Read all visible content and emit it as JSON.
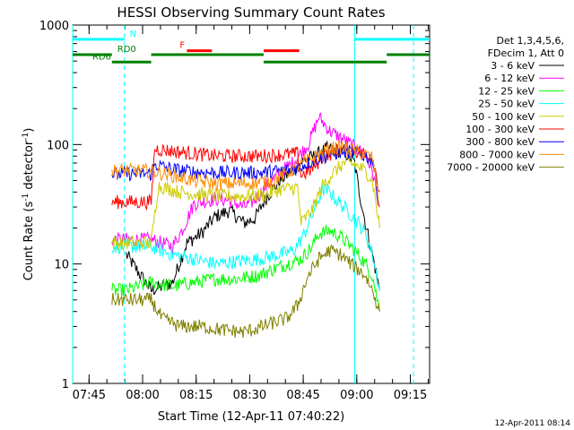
{
  "chart_data": {
    "type": "line",
    "title": "HESSI Observing Summary Count Rates",
    "xlabel": "Start Time (12-Apr-11 07:40:22)",
    "ylabel_main": "Count Rate (s",
    "ylabel_sup1": "-1",
    "ylabel_mid": " detector",
    "ylabel_sup2": "-1",
    "ylabel_end": ")",
    "footer_date": "12-Apr-2011 08:14",
    "xaxis_unit": "minutes since 07:40:22",
    "xlim": [
      0,
      100
    ],
    "ylim": [
      1,
      1000
    ],
    "yscale": "log",
    "xticks": [
      {
        "v": 4.6,
        "label": "07:45"
      },
      {
        "v": 19.6,
        "label": "08:00"
      },
      {
        "v": 34.6,
        "label": "08:15"
      },
      {
        "v": 49.6,
        "label": "08:30"
      },
      {
        "v": 64.6,
        "label": "08:45"
      },
      {
        "v": 79.6,
        "label": "09:00"
      },
      {
        "v": 94.6,
        "label": "09:15"
      }
    ],
    "yticks": [
      {
        "v": 1,
        "label": "1"
      },
      {
        "v": 10,
        "label": "10"
      },
      {
        "v": 100,
        "label": "100"
      },
      {
        "v": 1000,
        "label": "1000"
      }
    ],
    "legend_header": [
      "Det 1,3,4,5,6,",
      "FDecim 1, Att 0"
    ],
    "vlines": [
      {
        "x": 0.0,
        "style": "solid",
        "color": "#00ffff"
      },
      {
        "x": 14.5,
        "style": "dashed",
        "color": "#00ffff"
      },
      {
        "x": 79.0,
        "style": "solid",
        "color": "#00ffff"
      },
      {
        "x": 95.5,
        "style": "dashed",
        "color": "#00ffff"
      }
    ],
    "flag_bars": [
      {
        "label": "N",
        "color": "#00ffff",
        "y": 760,
        "segments": [
          [
            0,
            14.5
          ],
          [
            79,
            100
          ]
        ],
        "label_x": 16
      },
      {
        "label": "F",
        "color": "#ff0000",
        "y": 610,
        "segments": [
          [
            32,
            39
          ],
          [
            53.5,
            63.5
          ]
        ],
        "label_x": 30
      },
      {
        "label": "RD0",
        "color": "#008000",
        "y": 565,
        "segments": [
          [
            0,
            11
          ],
          [
            22,
            53.5
          ],
          [
            88,
            100
          ]
        ],
        "label_x": 12.5
      },
      {
        "label": "RD6",
        "color": "#008000",
        "y": 490,
        "segments": [
          [
            11,
            22
          ],
          [
            53.5,
            88
          ]
        ],
        "label_x": 5.5
      }
    ],
    "series": [
      {
        "name": "3 - 6 keV",
        "color": "#000000",
        "points": [
          [
            11,
            null
          ],
          [
            15,
            12
          ],
          [
            22,
            6
          ],
          [
            28,
            7
          ],
          [
            32,
            15
          ],
          [
            36,
            18
          ],
          [
            40,
            25
          ],
          [
            44,
            28
          ],
          [
            48,
            22
          ],
          [
            51,
            24
          ],
          [
            54,
            35
          ],
          [
            58,
            50
          ],
          [
            62,
            62
          ],
          [
            65,
            75
          ],
          [
            68,
            80
          ],
          [
            71,
            92
          ],
          [
            74,
            90
          ],
          [
            77,
            82
          ],
          [
            79,
            70
          ],
          [
            80,
            45
          ],
          [
            82,
            22
          ],
          [
            84,
            12
          ],
          [
            86,
            6
          ]
        ]
      },
      {
        "name": "6 - 12 keV",
        "color": "#ff00ff",
        "points": [
          [
            11,
            16
          ],
          [
            15,
            16
          ],
          [
            22,
            16
          ],
          [
            28,
            14
          ],
          [
            31,
            20
          ],
          [
            34,
            32
          ],
          [
            40,
            35
          ],
          [
            44,
            34
          ],
          [
            48,
            30
          ],
          [
            51,
            34
          ],
          [
            54,
            44
          ],
          [
            58,
            58
          ],
          [
            62,
            72
          ],
          [
            66,
            100
          ],
          [
            69,
            170
          ],
          [
            72,
            130
          ],
          [
            76,
            110
          ],
          [
            79,
            95
          ],
          [
            82,
            82
          ],
          [
            84,
            60
          ],
          [
            86,
            30
          ]
        ]
      },
      {
        "name": "12 - 25 keV",
        "color": "#00ff00",
        "points": [
          [
            11,
            6
          ],
          [
            15,
            6
          ],
          [
            22,
            7
          ],
          [
            28,
            6.5
          ],
          [
            34,
            7
          ],
          [
            40,
            7.5
          ],
          [
            46,
            7.5
          ],
          [
            52,
            8
          ],
          [
            56,
            9
          ],
          [
            60,
            10
          ],
          [
            64,
            11
          ],
          [
            67,
            14
          ],
          [
            69,
            18
          ],
          [
            72,
            19
          ],
          [
            75,
            17
          ],
          [
            78,
            14
          ],
          [
            80,
            12
          ],
          [
            82,
            10
          ],
          [
            84,
            8
          ],
          [
            86,
            4
          ]
        ]
      },
      {
        "name": "25 - 50 keV",
        "color": "#00ffff",
        "points": [
          [
            11,
            14
          ],
          [
            15,
            14
          ],
          [
            22,
            14
          ],
          [
            28,
            12
          ],
          [
            34,
            11
          ],
          [
            40,
            10
          ],
          [
            46,
            10.5
          ],
          [
            52,
            11
          ],
          [
            58,
            12
          ],
          [
            62,
            13
          ],
          [
            65,
            18
          ],
          [
            68,
            30
          ],
          [
            70,
            42
          ],
          [
            72,
            40
          ],
          [
            74,
            34
          ],
          [
            77,
            28
          ],
          [
            80,
            22
          ],
          [
            82,
            18
          ],
          [
            84,
            12
          ],
          [
            86,
            6
          ]
        ]
      },
      {
        "name": "50 - 100 keV",
        "color": "#cccc00",
        "points": [
          [
            11,
            15
          ],
          [
            15,
            15
          ],
          [
            22,
            15
          ],
          [
            24,
            45
          ],
          [
            30,
            40
          ],
          [
            36,
            38
          ],
          [
            42,
            37
          ],
          [
            48,
            37
          ],
          [
            54,
            38
          ],
          [
            58,
            42
          ],
          [
            63,
            44
          ],
          [
            64,
            22
          ],
          [
            67,
            28
          ],
          [
            70,
            45
          ],
          [
            73,
            58
          ],
          [
            76,
            70
          ],
          [
            79,
            68
          ],
          [
            82,
            60
          ],
          [
            84,
            50
          ],
          [
            86,
            20
          ]
        ]
      },
      {
        "name": "100 - 300 keV",
        "color": "#ff0000",
        "points": [
          [
            11,
            33
          ],
          [
            15,
            33
          ],
          [
            22,
            33
          ],
          [
            23,
            92
          ],
          [
            28,
            88
          ],
          [
            34,
            84
          ],
          [
            40,
            80
          ],
          [
            46,
            80
          ],
          [
            52,
            80
          ],
          [
            58,
            82
          ],
          [
            63,
            84
          ],
          [
            64,
            55
          ],
          [
            67,
            62
          ],
          [
            70,
            78
          ],
          [
            74,
            88
          ],
          [
            78,
            90
          ],
          [
            81,
            85
          ],
          [
            84,
            80
          ],
          [
            86,
            40
          ]
        ]
      },
      {
        "name": "300 - 800 keV",
        "color": "#0000ff",
        "points": [
          [
            11,
            56
          ],
          [
            15,
            57
          ],
          [
            22,
            57
          ],
          [
            23,
            68
          ],
          [
            28,
            62
          ],
          [
            34,
            59
          ],
          [
            40,
            58
          ],
          [
            46,
            58
          ],
          [
            52,
            58
          ],
          [
            58,
            60
          ],
          [
            62,
            62
          ],
          [
            65,
            68
          ],
          [
            68,
            75
          ],
          [
            72,
            82
          ],
          [
            76,
            88
          ],
          [
            79,
            86
          ],
          [
            82,
            80
          ],
          [
            84,
            75
          ],
          [
            86,
            30
          ]
        ]
      },
      {
        "name": "800 - 7000 keV",
        "color": "#ff8c00",
        "points": [
          [
            11,
            60
          ],
          [
            15,
            61
          ],
          [
            22,
            60
          ],
          [
            28,
            55
          ],
          [
            34,
            50
          ],
          [
            40,
            47
          ],
          [
            46,
            47
          ],
          [
            52,
            48
          ],
          [
            56,
            50
          ],
          [
            60,
            58
          ],
          [
            64,
            68
          ],
          [
            68,
            80
          ],
          [
            72,
            92
          ],
          [
            75,
            95
          ],
          [
            78,
            90
          ],
          [
            81,
            84
          ],
          [
            84,
            78
          ],
          [
            86,
            30
          ]
        ]
      },
      {
        "name": "7000 - 20000 keV",
        "color": "#808000",
        "points": [
          [
            11,
            5
          ],
          [
            15,
            5
          ],
          [
            22,
            5
          ],
          [
            25,
            3.5
          ],
          [
            30,
            3
          ],
          [
            36,
            3
          ],
          [
            42,
            2.8
          ],
          [
            48,
            2.7
          ],
          [
            52,
            2.9
          ],
          [
            56,
            3.2
          ],
          [
            60,
            3.5
          ],
          [
            63,
            4.5
          ],
          [
            66,
            8
          ],
          [
            69,
            11
          ],
          [
            72,
            13
          ],
          [
            75,
            12
          ],
          [
            78,
            10
          ],
          [
            80,
            9
          ],
          [
            82,
            8
          ],
          [
            84,
            6
          ],
          [
            86,
            4
          ]
        ]
      }
    ]
  }
}
